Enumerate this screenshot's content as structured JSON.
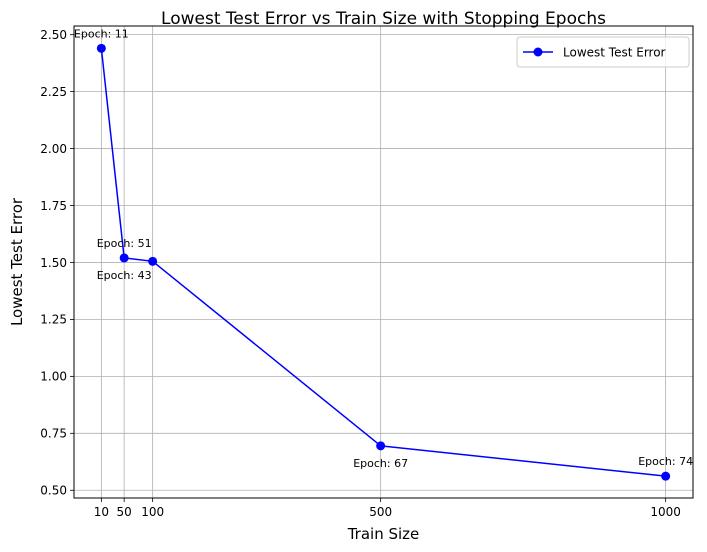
{
  "chart_data": {
    "type": "line",
    "title": "Lowest Test Error vs Train Size with Stopping Epochs",
    "xlabel": "Train Size",
    "ylabel": "Lowest Test Error",
    "x": [
      10,
      50,
      100,
      500,
      1000
    ],
    "x_tick_labels": [
      "10",
      "50",
      "100",
      "500",
      "1000"
    ],
    "y_ticks": [
      0.5,
      0.75,
      1.0,
      1.25,
      1.5,
      1.75,
      2.0,
      2.25,
      2.5
    ],
    "y_tick_labels": [
      "0.50",
      "0.75",
      "1.00",
      "1.25",
      "1.50",
      "1.75",
      "2.00",
      "2.25",
      "2.50"
    ],
    "xlim": [
      -38,
      1048
    ],
    "ylim": [
      0.466,
      2.538
    ],
    "grid": true,
    "legend_position": "top-right",
    "series": [
      {
        "name": "Lowest Test Error",
        "color": "#0000ff",
        "marker": "circle",
        "values": [
          2.44,
          1.52,
          1.505,
          0.695,
          0.562
        ]
      }
    ],
    "annotations": [
      {
        "text": "Epoch: 11",
        "x": 10,
        "y": 2.44,
        "placement": "above"
      },
      {
        "text": "Epoch: 43",
        "x": 50,
        "y": 1.52,
        "placement": "below"
      },
      {
        "text": "Epoch: 51",
        "x": 50,
        "y": 1.52,
        "placement": "above"
      },
      {
        "text": "Epoch: 67",
        "x": 500,
        "y": 0.695,
        "placement": "below"
      },
      {
        "text": "Epoch: 74",
        "x": 1000,
        "y": 0.562,
        "placement": "above"
      }
    ]
  }
}
